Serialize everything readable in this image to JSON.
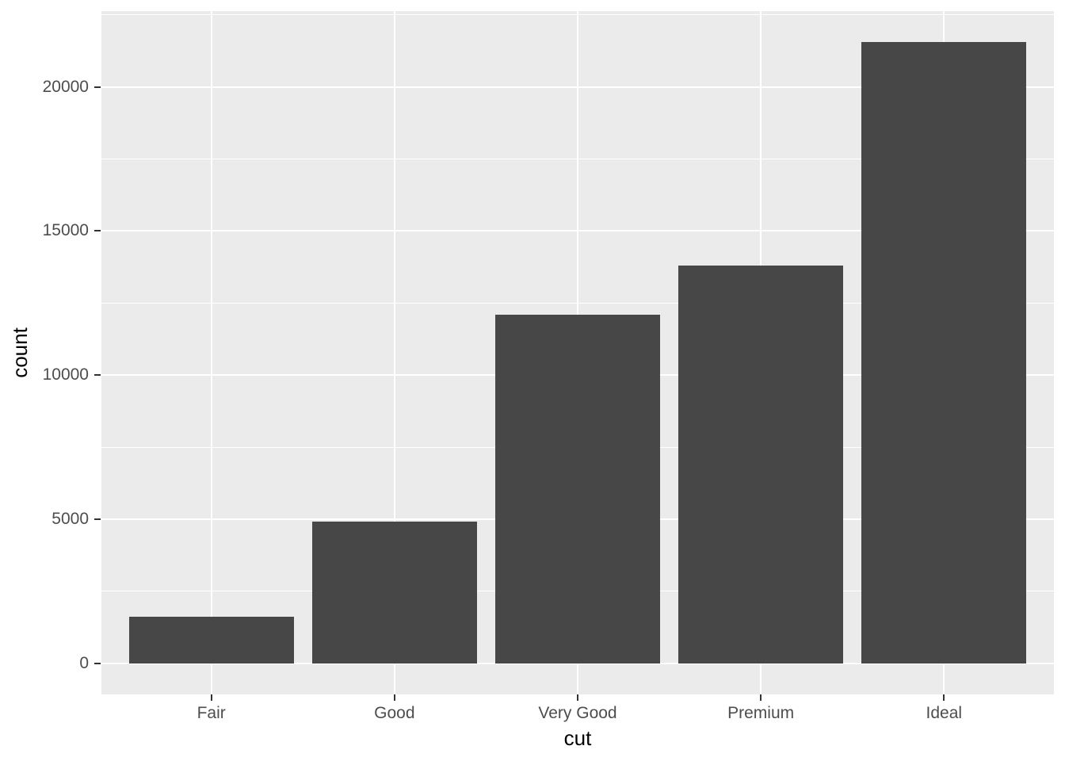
{
  "chart_data": {
    "type": "bar",
    "title": "",
    "xlabel": "cut",
    "ylabel": "count",
    "categories": [
      "Fair",
      "Good",
      "Very Good",
      "Premium",
      "Ideal"
    ],
    "values": [
      1610,
      4906,
      12082,
      13791,
      21551
    ],
    "ylim": [
      -1077.6,
      22628.6
    ],
    "y_major_ticks": [
      0,
      5000,
      10000,
      15000,
      20000
    ],
    "y_minor_gridlines": [
      2500,
      7500,
      12500,
      17500,
      22500
    ],
    "bar_width_fraction": 0.9,
    "x_scale_expand": 0.6,
    "grid": "horizontal major+minor, vertical major at category centers",
    "legend": "none"
  },
  "style": {
    "bar_fill": "#474747",
    "panel_background": "#EBEBEB",
    "gridline_color": "#FFFFFF",
    "tick_label_color": "#4D4D4D",
    "axis_title_color": "#000000",
    "tick_mark_color": "#333333",
    "figure_background": "#FFFFFF"
  }
}
